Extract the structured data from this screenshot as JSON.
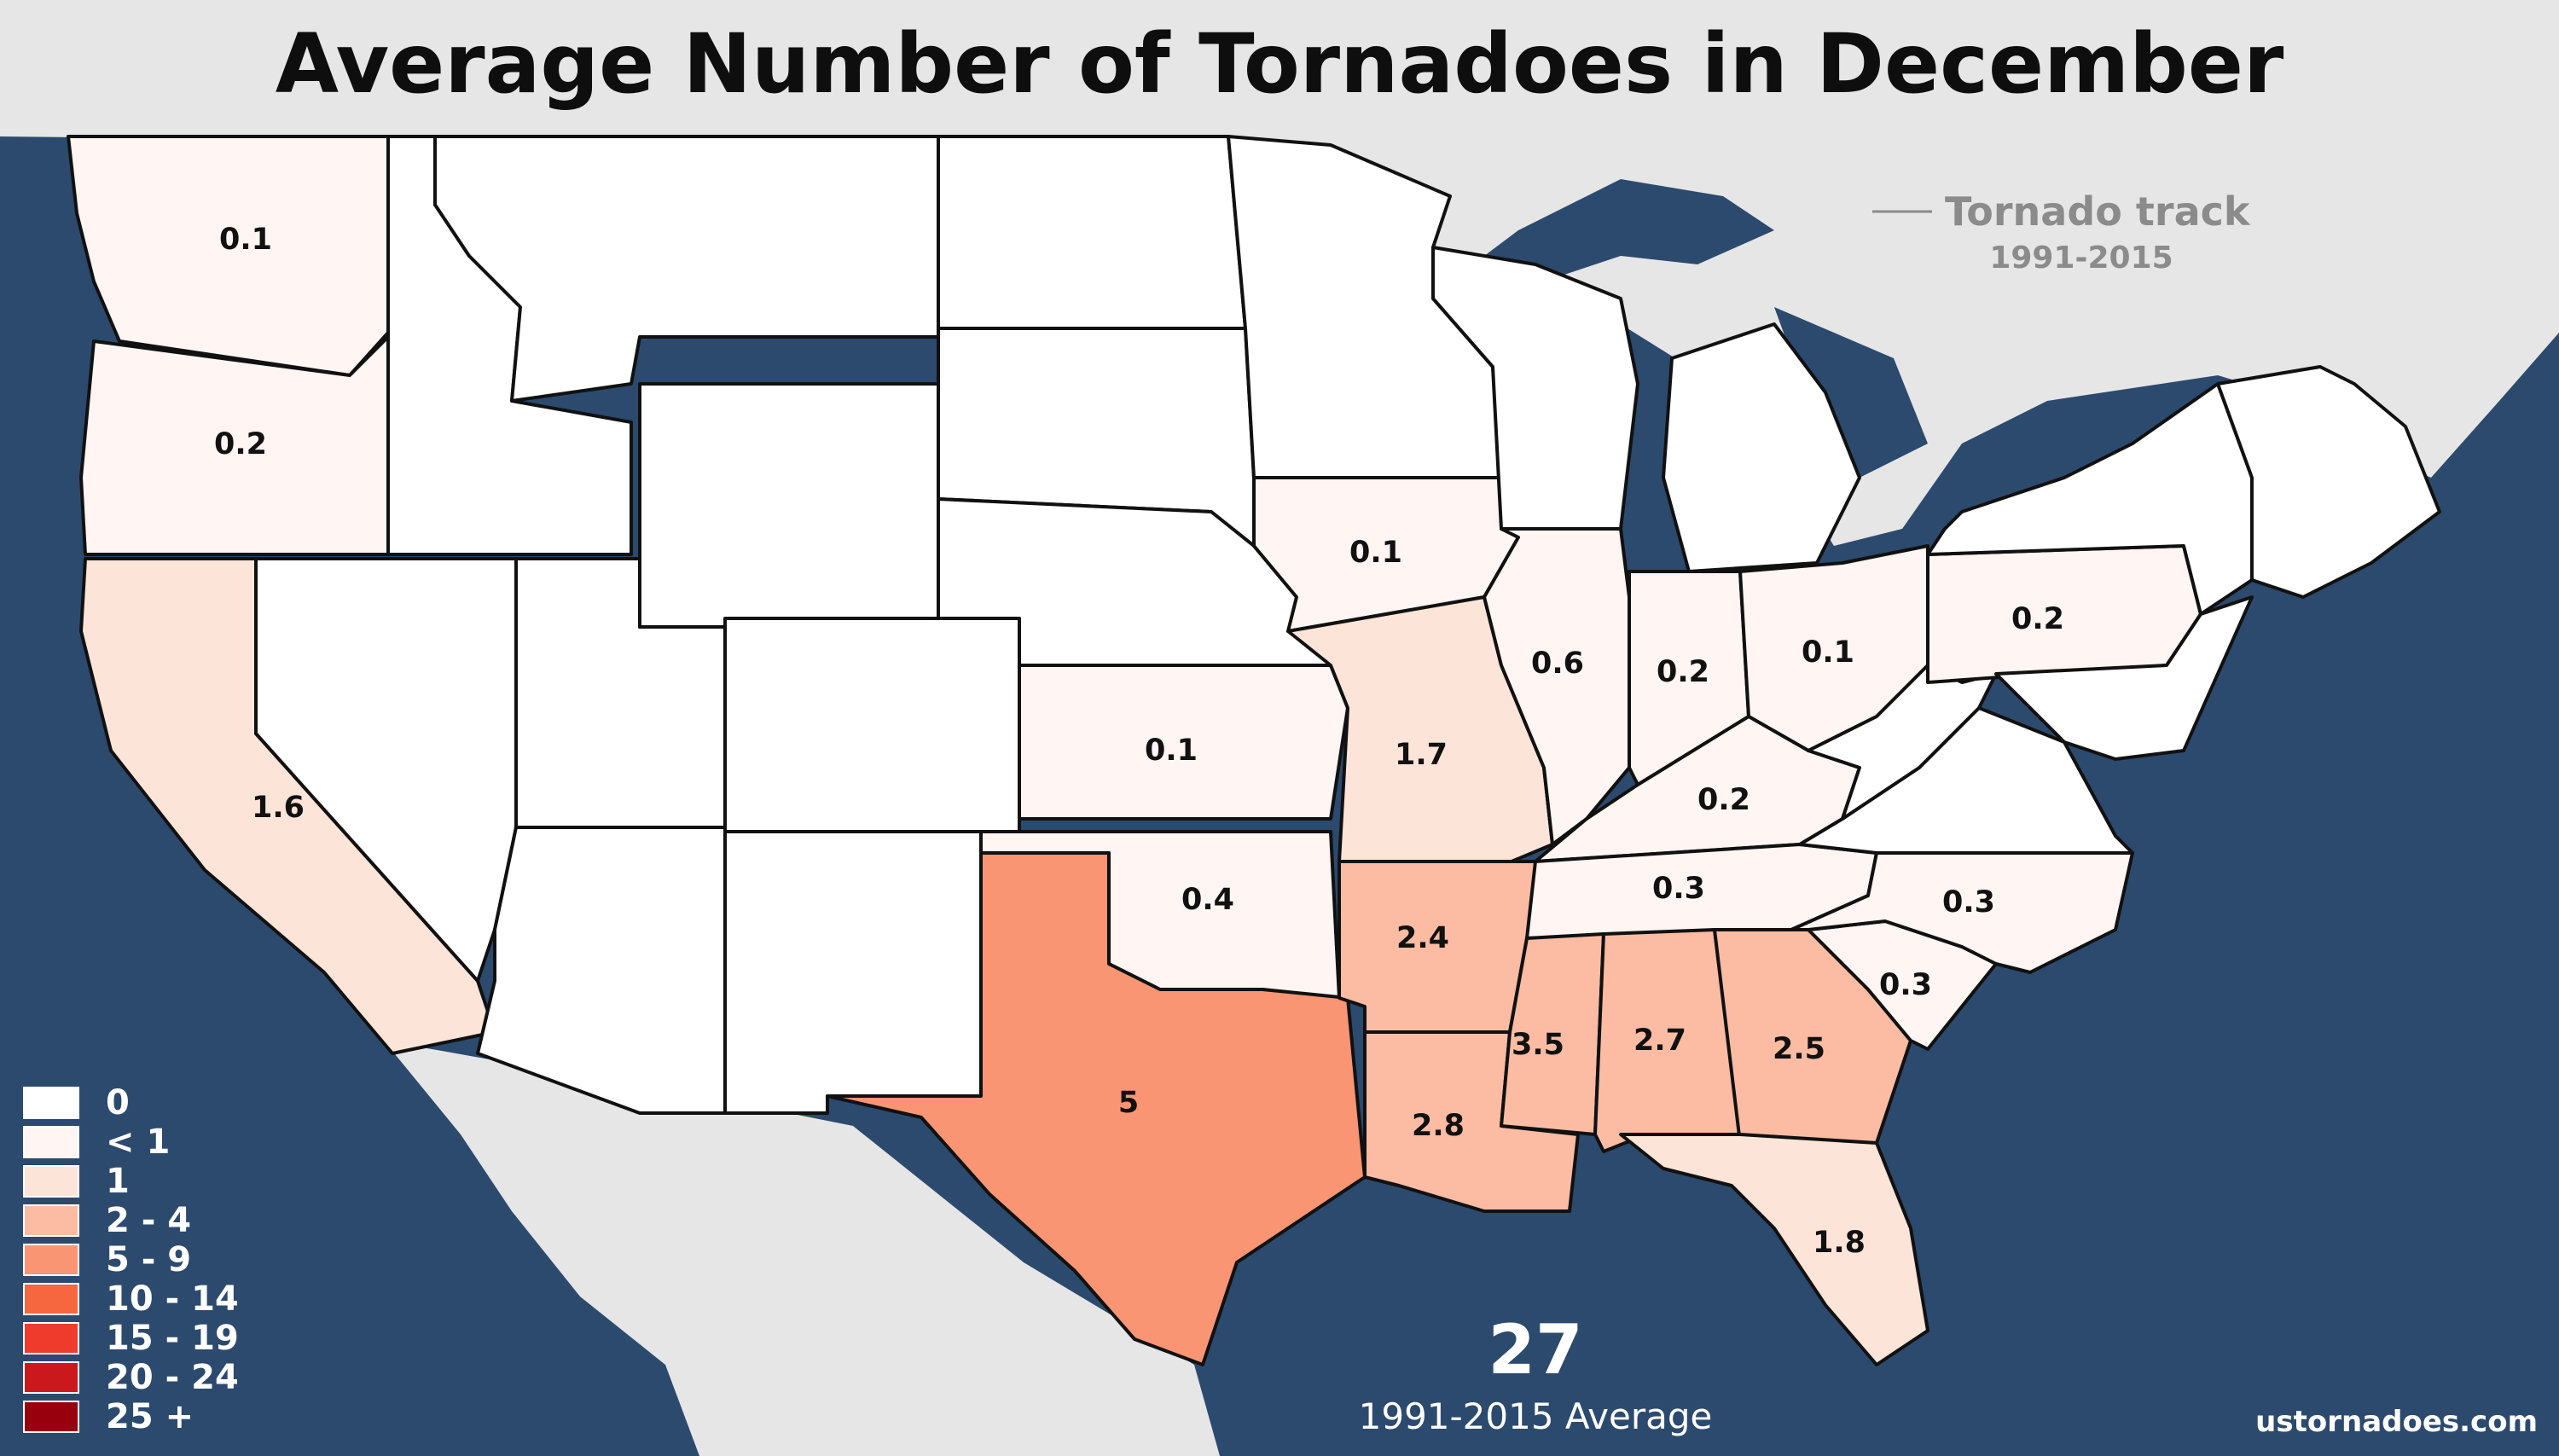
{
  "title": "Average Number of Tornadoes in December",
  "track_legend": {
    "label": "Tornado track",
    "years": "1991-2015"
  },
  "total": {
    "value": "27",
    "caption": "1991-2015 Average"
  },
  "source": "ustornadoes.com",
  "colors": {
    "ocean": "#2c4a6e",
    "land": "#e6e6e6",
    "zero": "#ffffff",
    "lt1": "#fff5f2",
    "one": "#fde4d8",
    "two_four": "#fbbca3",
    "five_nine": "#fa9573"
  },
  "legend": [
    {
      "label": "0",
      "color": "#ffffff"
    },
    {
      "label": "< 1",
      "color": "#fff5f2"
    },
    {
      "label": "1",
      "color": "#fde4d8"
    },
    {
      "label": "2 - 4",
      "color": "#fbbca3"
    },
    {
      "label": "5 - 9",
      "color": "#fa9573"
    },
    {
      "label": "10 - 14",
      "color": "#f7673f"
    },
    {
      "label": "15 - 19",
      "color": "#ef3b2c"
    },
    {
      "label": "20 - 24",
      "color": "#cb181d"
    },
    {
      "label": "25 +",
      "color": "#99000d"
    }
  ],
  "states": [
    {
      "name": "WA",
      "value": "0.1"
    },
    {
      "name": "OR",
      "value": "0.2"
    },
    {
      "name": "CA",
      "value": "1.6"
    },
    {
      "name": "IA",
      "value": "0.1"
    },
    {
      "name": "IL",
      "value": "0.6"
    },
    {
      "name": "IN",
      "value": "0.2"
    },
    {
      "name": "OH",
      "value": "0.1"
    },
    {
      "name": "PA",
      "value": "0.2"
    },
    {
      "name": "KS",
      "value": "0.1"
    },
    {
      "name": "MO",
      "value": "1.7"
    },
    {
      "name": "KY",
      "value": "0.2"
    },
    {
      "name": "OK",
      "value": "0.4"
    },
    {
      "name": "TN",
      "value": "0.3"
    },
    {
      "name": "NC",
      "value": "0.3"
    },
    {
      "name": "AR",
      "value": "2.4"
    },
    {
      "name": "SC",
      "value": "0.3"
    },
    {
      "name": "MS",
      "value": "3.5"
    },
    {
      "name": "AL",
      "value": "2.7"
    },
    {
      "name": "GA",
      "value": "2.5"
    },
    {
      "name": "TX",
      "value": "5"
    },
    {
      "name": "LA",
      "value": "2.8"
    },
    {
      "name": "FL",
      "value": "1.8"
    }
  ]
}
